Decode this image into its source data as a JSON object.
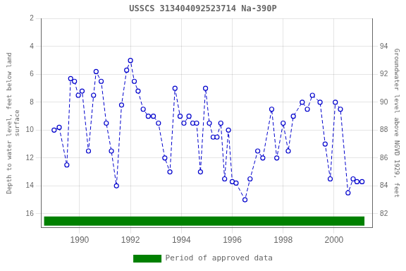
{
  "chart_data": {
    "type": "line",
    "title": "USSCS 313404092523714 Na-390P",
    "ylabel": "Depth to water level, feet below land\nsurface",
    "y2label": "Groundwater level above NGVD 1929, feet",
    "x": [
      1989.0,
      1989.2,
      1989.5,
      1989.65,
      1989.8,
      1989.95,
      1990.1,
      1990.35,
      1990.55,
      1990.65,
      1990.85,
      1991.05,
      1991.25,
      1991.45,
      1991.65,
      1991.85,
      1992.0,
      1992.15,
      1992.3,
      1992.5,
      1992.7,
      1992.9,
      1993.1,
      1993.35,
      1993.55,
      1993.75,
      1993.95,
      1994.1,
      1994.3,
      1994.45,
      1994.6,
      1994.75,
      1994.95,
      1995.1,
      1995.25,
      1995.4,
      1995.55,
      1995.7,
      1995.85,
      1996.0,
      1996.15,
      1996.5,
      1996.7,
      1997.0,
      1997.2,
      1997.55,
      1997.75,
      1998.0,
      1998.2,
      1998.4,
      1998.75,
      1998.95,
      1999.15,
      1999.45,
      1999.65,
      1999.85,
      2000.05,
      2000.25,
      2000.55,
      2000.75,
      2000.9,
      2001.1
    ],
    "series": [
      {
        "color": "#0000cc",
        "marker": "circle",
        "line_style": "dashed",
        "values": [
          10.0,
          9.8,
          12.5,
          6.3,
          6.5,
          7.5,
          7.2,
          11.5,
          7.5,
          5.8,
          6.5,
          9.5,
          11.5,
          14.0,
          8.2,
          5.7,
          5.0,
          6.5,
          7.2,
          8.5,
          9.0,
          9.0,
          9.5,
          12.0,
          13.0,
          7.0,
          9.0,
          9.5,
          9.0,
          9.5,
          9.5,
          13.0,
          7.0,
          9.5,
          10.5,
          10.5,
          9.5,
          13.5,
          10.0,
          13.7,
          13.8,
          15.0,
          13.5,
          11.5,
          12.0,
          8.5,
          12.0,
          9.5,
          11.5,
          9.0,
          8.0,
          8.5,
          7.5,
          8.0,
          11.0,
          13.5,
          8.0,
          8.5,
          14.5,
          13.5,
          13.7,
          13.7
        ]
      },
      {
        "name": "Period of approved data",
        "type": "area",
        "color": "#008000",
        "x": [
          1988.6,
          2001.2
        ],
        "values": [
          16.85,
          16.85
        ],
        "base": 16.2
      }
    ],
    "xlim": [
      1988.5,
      2001.5
    ],
    "xticks": [
      1990,
      1992,
      1994,
      1996,
      1998,
      2000
    ],
    "ylim": [
      17,
      2
    ],
    "yticks": [
      2,
      4,
      6,
      8,
      10,
      12,
      14,
      16
    ],
    "y2lim": [
      81,
      96
    ],
    "y2ticks": [
      82,
      84,
      86,
      88,
      90,
      92,
      94
    ],
    "grid": true,
    "legend": "bottom"
  }
}
